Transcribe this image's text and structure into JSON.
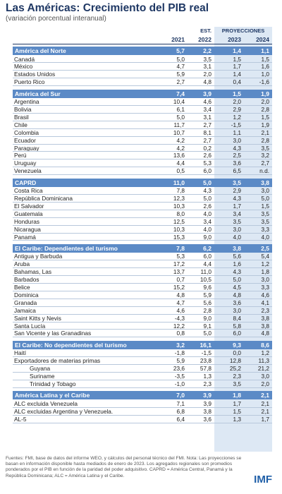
{
  "header": {
    "title": "Las Américas: Crecimiento del PIB real",
    "subtitle": "(variación porcentual interanual)",
    "est": "EST.",
    "projections": "PROYECCIONES",
    "years": [
      "2021",
      "2022",
      "2023",
      "2024"
    ]
  },
  "sections": [
    {
      "label": "América del Norte",
      "values": [
        "5,7",
        "2,2",
        "1,4",
        "1,1"
      ],
      "rows": [
        {
          "label": "Canadá",
          "values": [
            "5,0",
            "3,5",
            "1,5",
            "1,5"
          ]
        },
        {
          "label": "México",
          "values": [
            "4,7",
            "3,1",
            "1,7",
            "1,6"
          ]
        },
        {
          "label": "Estados Unidos",
          "values": [
            "5,9",
            "2,0",
            "1,4",
            "1,0"
          ]
        },
        {
          "label": "Puerto Rico",
          "values": [
            "2,7",
            "4,8",
            "0,4",
            "-1,6"
          ]
        }
      ]
    },
    {
      "label": "América del Sur",
      "values": [
        "7,4",
        "3,9",
        "1,5",
        "1,9"
      ],
      "rows": [
        {
          "label": "Argentina",
          "values": [
            "10,4",
            "4,6",
            "2,0",
            "2,0"
          ]
        },
        {
          "label": "Bolivia",
          "values": [
            "6,1",
            "3,4",
            "2,9",
            "2,8"
          ]
        },
        {
          "label": "Brasil",
          "values": [
            "5,0",
            "3,1",
            "1,2",
            "1,5"
          ]
        },
        {
          "label": "Chile",
          "values": [
            "11,7",
            "2,7",
            "-1,5",
            "1,9"
          ]
        },
        {
          "label": "Colombia",
          "values": [
            "10,7",
            "8,1",
            "1,1",
            "2,1"
          ]
        },
        {
          "label": "Ecuador",
          "values": [
            "4,2",
            "2,7",
            "3,0",
            "2,8"
          ]
        },
        {
          "label": "Paraguay",
          "values": [
            "4,2",
            "0,2",
            "4,3",
            "3,5"
          ]
        },
        {
          "label": "Perú",
          "values": [
            "13,6",
            "2,6",
            "2,5",
            "3,2"
          ]
        },
        {
          "label": "Uruguay",
          "values": [
            "4,4",
            "5,3",
            "3,6",
            "2,7"
          ]
        },
        {
          "label": "Venezuela",
          "values": [
            "0,5",
            "6,0",
            "6,5",
            "n.d."
          ]
        }
      ]
    },
    {
      "label": "CAPRD",
      "values": [
        "11,0",
        "5,0",
        "3,5",
        "3,8"
      ],
      "rows": [
        {
          "label": "Costa Rica",
          "values": [
            "7,8",
            "4,3",
            "2,9",
            "3,0"
          ]
        },
        {
          "label": "República Dominicana",
          "values": [
            "12,3",
            "5,0",
            "4,3",
            "5,0"
          ]
        },
        {
          "label": "El Salvador",
          "values": [
            "10,3",
            "2,6",
            "1,7",
            "1,5"
          ]
        },
        {
          "label": "Guatemala",
          "values": [
            "8,0",
            "4,0",
            "3,4",
            "3,5"
          ]
        },
        {
          "label": "Honduras",
          "values": [
            "12,5",
            "3,4",
            "3,5",
            "3,5"
          ]
        },
        {
          "label": "Nicaragua",
          "values": [
            "10,3",
            "4,0",
            "3,0",
            "3,3"
          ]
        },
        {
          "label": "Panamá",
          "values": [
            "15,3",
            "9,0",
            "4,0",
            "4,0"
          ]
        }
      ]
    },
    {
      "label": "El Caribe: Dependientes del turismo",
      "values": [
        "7,8",
        "6,2",
        "3,8",
        "2,5"
      ],
      "rows": [
        {
          "label": "Antigua y Barbuda",
          "values": [
            "5,3",
            "6,0",
            "5,6",
            "5,4"
          ]
        },
        {
          "label": "Aruba",
          "values": [
            "17,2",
            "4,4",
            "1,6",
            "1,2"
          ]
        },
        {
          "label": "Bahamas, Las",
          "values": [
            "13,7",
            "11,0",
            "4,3",
            "1,8"
          ]
        },
        {
          "label": "Barbados",
          "values": [
            "0,7",
            "10,5",
            "5,0",
            "3,0"
          ]
        },
        {
          "label": "Belice",
          "values": [
            "15,2",
            "9,6",
            "4,5",
            "3,3"
          ]
        },
        {
          "label": "Dominica",
          "values": [
            "4,8",
            "5,9",
            "4,8",
            "4,6"
          ]
        },
        {
          "label": "Granada",
          "values": [
            "4,7",
            "5,6",
            "3,6",
            "4,1"
          ]
        },
        {
          "label": "Jamaica",
          "values": [
            "4,6",
            "2,8",
            "3,0",
            "2,3"
          ]
        },
        {
          "label": "Saint Kitts y Nevis",
          "values": [
            "-4,3",
            "9,0",
            "8,4",
            "3,8"
          ]
        },
        {
          "label": "Santa Lucía",
          "values": [
            "12,2",
            "9,1",
            "5,8",
            "3,8"
          ]
        },
        {
          "label": "San Vicente y las Granadinas",
          "values": [
            "0,8",
            "5,0",
            "6,0",
            "4,8"
          ]
        }
      ]
    },
    {
      "label": "El Caribe: No dependientes del turismo",
      "values": [
        "3,2",
        "16,1",
        "9,3",
        "8,6"
      ],
      "rows": [
        {
          "label": "Haití",
          "values": [
            "-1,8",
            "-1,5",
            "0,0",
            "1,2"
          ]
        },
        {
          "label": "Exportadores de materias primas",
          "values": [
            "5,9",
            "23,8",
            "12,8",
            "11,3"
          ],
          "subrows": [
            {
              "label": "Guyana",
              "values": [
                "23,6",
                "57,8",
                "25,2",
                "21,2"
              ]
            },
            {
              "label": "Suriname",
              "values": [
                "-3,5",
                "1,3",
                "2,3",
                "3,0"
              ]
            },
            {
              "label": "Trinidad y Tobago",
              "values": [
                "-1,0",
                "2,3",
                "3,5",
                "2,0"
              ]
            }
          ]
        }
      ]
    },
    {
      "label": "América Latina y el Caribe",
      "values": [
        "7,0",
        "3,9",
        "1,8",
        "2,1"
      ],
      "rows": [
        {
          "label": "ALC excluida Venezuela",
          "values": [
            "7,1",
            "3,9",
            "1,7",
            "2,1"
          ]
        },
        {
          "label": "ALC excluidas Argentina y Venezuela.",
          "values": [
            "6,8",
            "3,8",
            "1,5",
            "2,1"
          ]
        },
        {
          "label": "AL-5",
          "values": [
            "6,4",
            "3,6",
            "1,3",
            "1,7"
          ]
        }
      ]
    }
  ],
  "footnote": "Fuentes: FMI, base de datos del informe WEO, y cálculos del personal técnico del FMI. Nota: Las proyecciones se basan en información disponible hasta mediados de enero de 2023. Los agregados regionales son promedios ponderados por el PIB en función de la paridad del poder adquisitivo. CAPRD = América Central, Panamá y la República Dominicana; ALC = América Latina y el Caribe.",
  "logo": "IMF"
}
